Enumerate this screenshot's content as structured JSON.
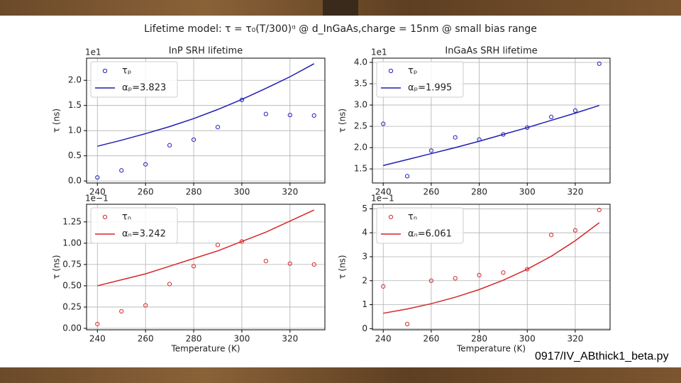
{
  "title": "Lifetime model: τ = τ₀(T/300)ᵅ @ d_InGaAs,charge = 15nm @ small bias range",
  "footer": "0917/IV_ABthick1_beta.py",
  "chart_data": [
    {
      "type": "scatter",
      "title": "InP SRH lifetime",
      "ylabel": "τ (ns)",
      "offset_label": "1e1",
      "x": [
        240,
        250,
        260,
        270,
        280,
        290,
        300,
        310,
        320,
        330
      ],
      "series": [
        {
          "name": "τₚ",
          "type": "scatter",
          "color": "#1f1fb4",
          "values": [
            0.07,
            0.21,
            0.33,
            0.71,
            0.82,
            1.07,
            1.61,
            1.33,
            1.31,
            1.3
          ]
        },
        {
          "name": "αₚ=3.823",
          "type": "line",
          "color": "#1f1fb4",
          "values": [
            0.69,
            0.81,
            0.94,
            1.08,
            1.24,
            1.42,
            1.62,
            1.84,
            2.07,
            2.33
          ]
        }
      ],
      "xlim": [
        235.5,
        334.5
      ],
      "xticks": [
        240,
        260,
        280,
        300,
        320
      ],
      "ylim": [
        -0.04,
        2.44
      ],
      "yticks": [
        {
          "value": 0,
          "label": "0.0"
        },
        0.5,
        {
          "value": 1,
          "label": "1.0"
        },
        1.5,
        {
          "value": 2,
          "label": "2.0"
        }
      ],
      "grid": true,
      "legend": "upper left"
    },
    {
      "type": "scatter",
      "title": "InGaAs SRH lifetime",
      "ylabel": "τ (ns)",
      "offset_label": "1e1",
      "x": [
        240,
        250,
        260,
        270,
        280,
        290,
        300,
        310,
        320,
        330
      ],
      "series": [
        {
          "name": "τₚ",
          "type": "scatter",
          "color": "#1f1fb4",
          "values": [
            2.56,
            1.33,
            1.93,
            2.24,
            2.19,
            2.31,
            2.47,
            2.72,
            2.87,
            3.97
          ]
        },
        {
          "name": "αₚ=1.995",
          "type": "line",
          "color": "#1f1fb4",
          "values": [
            1.58,
            1.72,
            1.86,
            2.0,
            2.15,
            2.31,
            2.47,
            2.64,
            2.81,
            2.99
          ]
        }
      ],
      "xlim": [
        235.5,
        334.5
      ],
      "xticks": [
        240,
        260,
        280,
        300,
        320
      ],
      "ylim": [
        1.17,
        4.1
      ],
      "yticks": [
        1.5,
        {
          "value": 2,
          "label": "2.0"
        },
        2.5,
        {
          "value": 3,
          "label": "3.0"
        },
        3.5,
        {
          "value": 4,
          "label": "4.0"
        }
      ],
      "grid": true,
      "legend": "upper left"
    },
    {
      "type": "scatter",
      "xlabel": "Temperature (K)",
      "ylabel": "τ (ns)",
      "offset_label": "1e−1",
      "x": [
        240,
        250,
        260,
        270,
        280,
        290,
        300,
        310,
        320,
        330
      ],
      "series": [
        {
          "name": "τₙ",
          "type": "scatter",
          "color": "#d62728",
          "values": [
            0.05,
            0.2,
            0.27,
            0.52,
            0.73,
            0.98,
            1.02,
            0.79,
            0.76,
            0.75
          ]
        },
        {
          "name": "αₙ=3.242",
          "type": "line",
          "color": "#d62728",
          "values": [
            0.5,
            0.57,
            0.64,
            0.73,
            0.82,
            0.91,
            1.02,
            1.13,
            1.26,
            1.39
          ]
        }
      ],
      "xlim": [
        235.5,
        334.5
      ],
      "xticks": [
        240,
        260,
        280,
        300,
        320
      ],
      "ylim": [
        -0.017,
        1.457
      ],
      "yticks": [
        {
          "value": 0,
          "label": "0.00"
        },
        0.25,
        {
          "value": 0.5,
          "label": "0.50"
        },
        0.75,
        {
          "value": 1,
          "label": "1.00"
        },
        1.25
      ],
      "grid": true,
      "legend": "upper left"
    },
    {
      "type": "scatter",
      "xlabel": "Temperature (K)",
      "ylabel": "τ (ns)",
      "offset_label": "1e−1",
      "x": [
        240,
        250,
        260,
        270,
        280,
        290,
        300,
        310,
        320,
        330
      ],
      "series": [
        {
          "name": "τₙ",
          "type": "scatter",
          "color": "#d62728",
          "values": [
            1.76,
            0.19,
            2.0,
            2.1,
            2.23,
            2.34,
            2.48,
            3.91,
            4.1,
            4.95
          ]
        },
        {
          "name": "αₙ=6.061",
          "type": "line",
          "color": "#d62728",
          "values": [
            0.64,
            0.82,
            1.04,
            1.31,
            1.63,
            2.02,
            2.48,
            3.02,
            3.67,
            4.42
          ]
        }
      ],
      "xlim": [
        235.5,
        334.5
      ],
      "xticks": [
        240,
        260,
        280,
        300,
        320
      ],
      "ylim": [
        -0.05,
        5.19
      ],
      "yticks": [
        0,
        1,
        2,
        3,
        4,
        5
      ],
      "grid": true,
      "legend": "upper left"
    }
  ]
}
